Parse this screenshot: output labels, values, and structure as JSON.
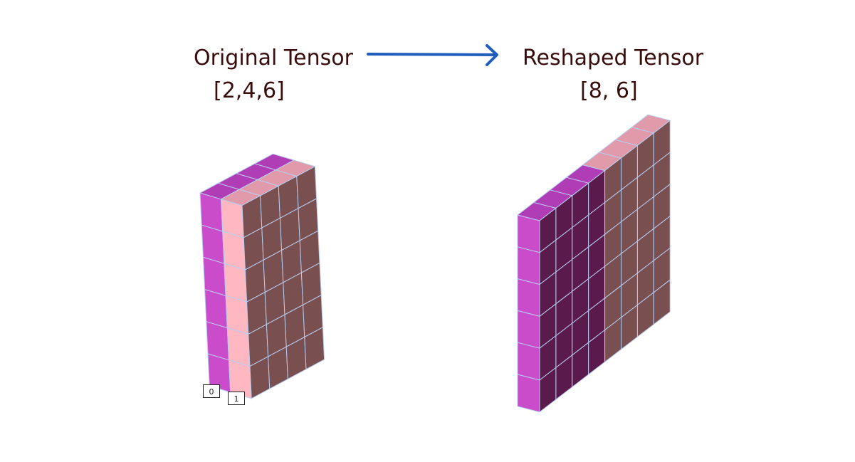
{
  "left": {
    "title": "Original Tensor",
    "shape": "[2,4,6]"
  },
  "right": {
    "title": "Reshaped Tensor",
    "shape": "[8, 6]"
  },
  "index_labels": [
    "0",
    "1"
  ],
  "colors": {
    "magenta_front": "#cb4ccb",
    "magenta_top": "#b03cb6",
    "magenta_side": "#5a1a4c",
    "pink_front": "#ffb8c2",
    "pink_top": "#e09aaa",
    "brown_side": "#7a4f50",
    "edge": "#b8cdf0",
    "arrow": "#1f5ebf",
    "text": "#3a0d0d"
  }
}
